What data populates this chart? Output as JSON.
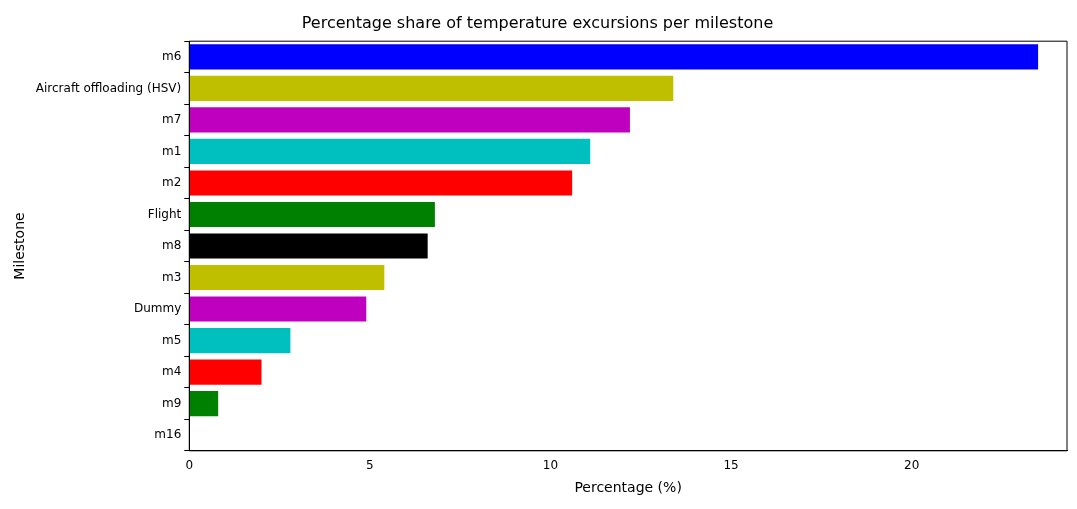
{
  "chart_data": {
    "type": "bar",
    "orientation": "horizontal",
    "title": "Percentage share of temperature excursions per milestone",
    "xlabel": "Percentage (%)",
    "ylabel": "Milestone",
    "categories": [
      "m6",
      "Aircraft offloading (HSV)",
      "m7",
      "m1",
      "m2",
      "Flight",
      "m8",
      "m3",
      "Dummy",
      "m5",
      "m4",
      "m9",
      "m16"
    ],
    "values": [
      23.5,
      13.4,
      12.2,
      11.1,
      10.6,
      6.8,
      6.6,
      5.4,
      4.9,
      2.8,
      2.0,
      0.8,
      0
    ],
    "colors": [
      "#0000ff",
      "#bfbf00",
      "#bf00bf",
      "#00bfbf",
      "#ff0000",
      "#008000",
      "#000000",
      "#bfbf00",
      "#bf00bf",
      "#00bfbf",
      "#ff0000",
      "#008000",
      "#0000ff"
    ],
    "xlim": [
      0,
      24.3
    ],
    "xticks": [
      0,
      5,
      10,
      15,
      20
    ],
    "grid": false,
    "legend": false
  }
}
